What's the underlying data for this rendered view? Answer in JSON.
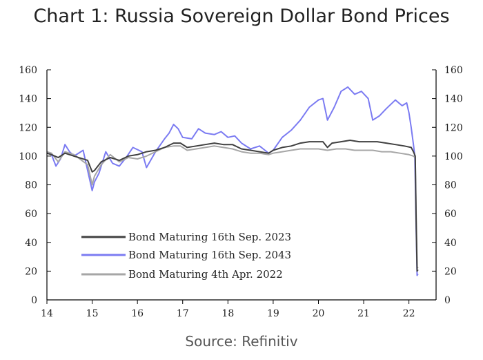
{
  "title": "Chart 1: Russia Sovereign Dollar Bond Prices",
  "source": "Source: Refinitiv",
  "colors": {
    "bond2023": "#404040",
    "bond2043": "#7b7bf2",
    "bond2022": "#a6a6a6",
    "axis": "#000000"
  },
  "chart_data": {
    "type": "line",
    "title": "Chart 1: Russia Sovereign Dollar Bond Prices",
    "xlabel": "",
    "ylabel": "",
    "xlim": [
      2014,
      2022.6
    ],
    "ylim": [
      0,
      160
    ],
    "x_ticks": [
      {
        "v": 2014,
        "label": "14"
      },
      {
        "v": 2015,
        "label": "15"
      },
      {
        "v": 2016,
        "label": "16"
      },
      {
        "v": 2017,
        "label": "17"
      },
      {
        "v": 2018,
        "label": "18"
      },
      {
        "v": 2019,
        "label": "19"
      },
      {
        "v": 2020,
        "label": "20"
      },
      {
        "v": 2021,
        "label": "21"
      },
      {
        "v": 2022,
        "label": "22"
      }
    ],
    "y_ticks": [
      0,
      20,
      40,
      60,
      80,
      100,
      120,
      140,
      160
    ],
    "right_axis": true,
    "grid": false,
    "legend_position": "bottom-left",
    "series": [
      {
        "name": "Bond Maturing 16th Sep. 2023",
        "color": "#404040",
        "points": [
          [
            2014.0,
            102
          ],
          [
            2014.1,
            101
          ],
          [
            2014.25,
            99
          ],
          [
            2014.4,
            102
          ],
          [
            2014.6,
            100
          ],
          [
            2014.9,
            97
          ],
          [
            2015.0,
            89
          ],
          [
            2015.05,
            90
          ],
          [
            2015.2,
            96
          ],
          [
            2015.4,
            99
          ],
          [
            2015.6,
            97
          ],
          [
            2015.8,
            100
          ],
          [
            2016.0,
            101
          ],
          [
            2016.2,
            103
          ],
          [
            2016.4,
            104
          ],
          [
            2016.6,
            106
          ],
          [
            2016.8,
            109
          ],
          [
            2016.95,
            109
          ],
          [
            2017.1,
            106
          ],
          [
            2017.3,
            107
          ],
          [
            2017.5,
            108
          ],
          [
            2017.7,
            109
          ],
          [
            2017.9,
            108
          ],
          [
            2018.1,
            108
          ],
          [
            2018.3,
            105
          ],
          [
            2018.5,
            104
          ],
          [
            2018.7,
            103
          ],
          [
            2018.9,
            102
          ],
          [
            2019.0,
            104
          ],
          [
            2019.2,
            106
          ],
          [
            2019.4,
            107
          ],
          [
            2019.6,
            109
          ],
          [
            2019.8,
            110
          ],
          [
            2020.0,
            110
          ],
          [
            2020.1,
            110
          ],
          [
            2020.2,
            106
          ],
          [
            2020.3,
            109
          ],
          [
            2020.5,
            110
          ],
          [
            2020.7,
            111
          ],
          [
            2020.9,
            110
          ],
          [
            2021.1,
            110
          ],
          [
            2021.3,
            110
          ],
          [
            2021.5,
            109
          ],
          [
            2021.7,
            108
          ],
          [
            2021.9,
            107
          ],
          [
            2022.05,
            106
          ],
          [
            2022.1,
            103
          ],
          [
            2022.14,
            100
          ],
          [
            2022.16,
            55
          ],
          [
            2022.18,
            20
          ],
          [
            2022.2,
            21
          ]
        ]
      },
      {
        "name": "Bond Maturing 16th Sep. 2043",
        "color": "#7b7bf2",
        "points": [
          [
            2014.0,
            103
          ],
          [
            2014.1,
            101
          ],
          [
            2014.2,
            93
          ],
          [
            2014.3,
            98
          ],
          [
            2014.4,
            108
          ],
          [
            2014.5,
            103
          ],
          [
            2014.6,
            100
          ],
          [
            2014.8,
            104
          ],
          [
            2014.9,
            90
          ],
          [
            2015.0,
            76
          ],
          [
            2015.05,
            82
          ],
          [
            2015.15,
            88
          ],
          [
            2015.3,
            103
          ],
          [
            2015.45,
            95
          ],
          [
            2015.6,
            93
          ],
          [
            2015.75,
            99
          ],
          [
            2015.9,
            106
          ],
          [
            2016.1,
            103
          ],
          [
            2016.2,
            92
          ],
          [
            2016.4,
            103
          ],
          [
            2016.6,
            112
          ],
          [
            2016.7,
            116
          ],
          [
            2016.8,
            122
          ],
          [
            2016.9,
            119
          ],
          [
            2017.0,
            113
          ],
          [
            2017.2,
            112
          ],
          [
            2017.35,
            119
          ],
          [
            2017.5,
            116
          ],
          [
            2017.7,
            115
          ],
          [
            2017.85,
            117
          ],
          [
            2018.0,
            113
          ],
          [
            2018.15,
            114
          ],
          [
            2018.3,
            109
          ],
          [
            2018.5,
            105
          ],
          [
            2018.7,
            107
          ],
          [
            2018.9,
            102
          ],
          [
            2019.0,
            104
          ],
          [
            2019.2,
            113
          ],
          [
            2019.4,
            118
          ],
          [
            2019.6,
            125
          ],
          [
            2019.8,
            134
          ],
          [
            2020.0,
            139
          ],
          [
            2020.1,
            140
          ],
          [
            2020.2,
            125
          ],
          [
            2020.35,
            134
          ],
          [
            2020.5,
            145
          ],
          [
            2020.65,
            148
          ],
          [
            2020.8,
            143
          ],
          [
            2020.95,
            145
          ],
          [
            2021.1,
            140
          ],
          [
            2021.2,
            125
          ],
          [
            2021.35,
            128
          ],
          [
            2021.5,
            133
          ],
          [
            2021.7,
            139
          ],
          [
            2021.85,
            135
          ],
          [
            2021.95,
            137
          ],
          [
            2022.0,
            130
          ],
          [
            2022.05,
            120
          ],
          [
            2022.1,
            108
          ],
          [
            2022.13,
            100
          ],
          [
            2022.16,
            50
          ],
          [
            2022.18,
            17
          ],
          [
            2022.2,
            18
          ]
        ]
      },
      {
        "name": "Bond Maturing 4th Apr. 2022",
        "color": "#a6a6a6",
        "points": [
          [
            2014.0,
            103
          ],
          [
            2014.1,
            102
          ],
          [
            2014.25,
            96
          ],
          [
            2014.4,
            103
          ],
          [
            2014.6,
            101
          ],
          [
            2014.9,
            94
          ],
          [
            2015.0,
            80
          ],
          [
            2015.05,
            86
          ],
          [
            2015.2,
            94
          ],
          [
            2015.4,
            101
          ],
          [
            2015.6,
            96
          ],
          [
            2015.8,
            99
          ],
          [
            2016.0,
            98
          ],
          [
            2016.2,
            100
          ],
          [
            2016.4,
            103
          ],
          [
            2016.6,
            106
          ],
          [
            2016.8,
            107
          ],
          [
            2016.95,
            107
          ],
          [
            2017.1,
            104
          ],
          [
            2017.3,
            105
          ],
          [
            2017.5,
            106
          ],
          [
            2017.7,
            107
          ],
          [
            2017.9,
            106
          ],
          [
            2018.1,
            105
          ],
          [
            2018.3,
            103
          ],
          [
            2018.5,
            102
          ],
          [
            2018.7,
            102
          ],
          [
            2018.9,
            101
          ],
          [
            2019.0,
            102
          ],
          [
            2019.2,
            103
          ],
          [
            2019.4,
            104
          ],
          [
            2019.6,
            105
          ],
          [
            2019.8,
            105
          ],
          [
            2020.0,
            105
          ],
          [
            2020.2,
            104
          ],
          [
            2020.4,
            105
          ],
          [
            2020.6,
            105
          ],
          [
            2020.8,
            104
          ],
          [
            2021.0,
            104
          ],
          [
            2021.2,
            104
          ],
          [
            2021.4,
            103
          ],
          [
            2021.6,
            103
          ],
          [
            2021.8,
            102
          ],
          [
            2022.0,
            101
          ],
          [
            2022.1,
            100
          ],
          [
            2022.14,
            99
          ],
          [
            2022.16,
            60
          ],
          [
            2022.18,
            23
          ],
          [
            2022.2,
            22
          ]
        ]
      }
    ]
  }
}
